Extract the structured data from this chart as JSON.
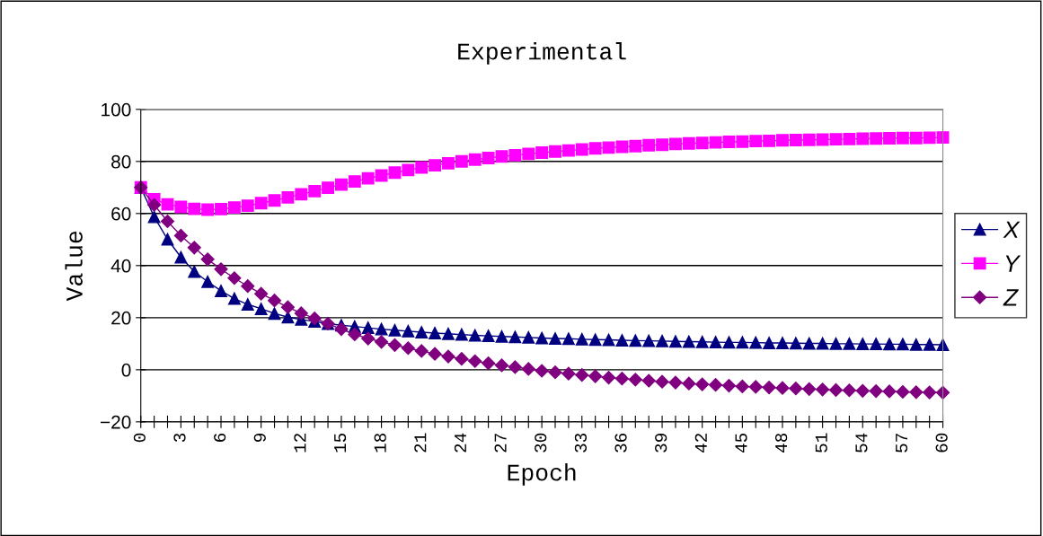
{
  "chart_data": {
    "type": "line",
    "title": "Experimental",
    "xlabel": "Epoch",
    "ylabel": "Value",
    "x": [
      0,
      1,
      2,
      3,
      4,
      5,
      6,
      7,
      8,
      9,
      10,
      11,
      12,
      13,
      14,
      15,
      16,
      17,
      18,
      19,
      20,
      21,
      22,
      23,
      24,
      25,
      26,
      27,
      28,
      29,
      30,
      31,
      32,
      33,
      34,
      35,
      36,
      37,
      38,
      39,
      40,
      41,
      42,
      43,
      44,
      45,
      46,
      47,
      48,
      49,
      50,
      51,
      52,
      53,
      54,
      55,
      56,
      57,
      58,
      59,
      60
    ],
    "series": [
      {
        "name": "X",
        "color": "#000080",
        "marker": "triangle",
        "values": [
          70,
          58.7,
          50.1,
          43.2,
          37.7,
          33.8,
          30.3,
          27.3,
          25.1,
          23.4,
          21.6,
          20.2,
          19.3,
          18.5,
          17.7,
          17.1,
          16.6,
          16.1,
          15.6,
          15.2,
          14.8,
          14.4,
          14.1,
          13.8,
          13.5,
          13.2,
          13.0,
          12.8,
          12.6,
          12.4,
          12.2,
          12.0,
          11.9,
          11.7,
          11.6,
          11.5,
          11.3,
          11.2,
          11.1,
          11.0,
          10.9,
          10.8,
          10.7,
          10.6,
          10.5,
          10.5,
          10.4,
          10.3,
          10.3,
          10.2,
          10.1,
          10.1,
          10.0,
          10.0,
          9.9,
          9.9,
          9.8,
          9.8,
          9.7,
          9.7,
          9.6
        ]
      },
      {
        "name": "Y",
        "color": "#ff00ff",
        "marker": "square",
        "values": [
          70,
          65.5,
          63.5,
          62.5,
          61.8,
          61.5,
          61.7,
          62.3,
          63.0,
          64.0,
          65.0,
          66.2,
          67.4,
          68.6,
          69.9,
          71.1,
          72.3,
          73.5,
          74.6,
          75.7,
          76.7,
          77.7,
          78.5,
          79.3,
          80.0,
          80.7,
          81.3,
          81.9,
          82.4,
          82.9,
          83.4,
          83.8,
          84.2,
          84.6,
          85.0,
          85.3,
          85.6,
          85.9,
          86.2,
          86.4,
          86.7,
          86.9,
          87.1,
          87.3,
          87.5,
          87.6,
          87.8,
          87.9,
          88.1,
          88.2,
          88.3,
          88.4,
          88.5,
          88.6,
          88.7,
          88.8,
          88.9,
          89.0,
          89.0,
          89.1,
          89.2
        ]
      },
      {
        "name": "Z",
        "color": "#800080",
        "marker": "diamond",
        "values": [
          70,
          63.3,
          57.0,
          51.5,
          46.9,
          42.4,
          38.6,
          35.2,
          32.1,
          29.2,
          26.6,
          24.0,
          21.7,
          19.7,
          17.7,
          15.6,
          13.6,
          12.0,
          10.7,
          9.5,
          8.3,
          7.2,
          6.1,
          5.1,
          4.2,
          3.3,
          2.5,
          1.7,
          1.0,
          0.3,
          -0.4,
          -1.0,
          -1.5,
          -2.0,
          -2.5,
          -3.0,
          -3.4,
          -3.8,
          -4.2,
          -4.6,
          -4.9,
          -5.3,
          -5.6,
          -5.8,
          -6.1,
          -6.4,
          -6.6,
          -6.8,
          -7.0,
          -7.2,
          -7.4,
          -7.6,
          -7.8,
          -7.9,
          -8.1,
          -8.2,
          -8.3,
          -8.5,
          -8.6,
          -8.7,
          -8.8
        ]
      }
    ],
    "xlim": [
      0,
      60
    ],
    "xticks": [
      0,
      {
        "value": 1,
        "label": null
      },
      {
        "value": 2,
        "label": null
      },
      3,
      {
        "value": 4,
        "label": null
      },
      {
        "value": 5,
        "label": null
      },
      6,
      {
        "value": 7,
        "label": null
      },
      {
        "value": 8,
        "label": null
      },
      9,
      {
        "value": 10,
        "label": null
      },
      {
        "value": 11,
        "label": null
      },
      12,
      {
        "value": 13,
        "label": null
      },
      {
        "value": 14,
        "label": null
      },
      15,
      {
        "value": 16,
        "label": null
      },
      {
        "value": 17,
        "label": null
      },
      18,
      {
        "value": 19,
        "label": null
      },
      {
        "value": 20,
        "label": null
      },
      21,
      {
        "value": 22,
        "label": null
      },
      {
        "value": 23,
        "label": null
      },
      24,
      {
        "value": 25,
        "label": null
      },
      {
        "value": 26,
        "label": null
      },
      27,
      {
        "value": 28,
        "label": null
      },
      {
        "value": 29,
        "label": null
      },
      30,
      {
        "value": 31,
        "label": null
      },
      {
        "value": 32,
        "label": null
      },
      33,
      {
        "value": 34,
        "label": null
      },
      {
        "value": 35,
        "label": null
      },
      36,
      {
        "value": 37,
        "label": null
      },
      {
        "value": 38,
        "label": null
      },
      39,
      {
        "value": 40,
        "label": null
      },
      {
        "value": 41,
        "label": null
      },
      42,
      {
        "value": 43,
        "label": null
      },
      {
        "value": 44,
        "label": null
      },
      45,
      {
        "value": 46,
        "label": null
      },
      {
        "value": 47,
        "label": null
      },
      48,
      {
        "value": 49,
        "label": null
      },
      {
        "value": 50,
        "label": null
      },
      51,
      {
        "value": 52,
        "label": null
      },
      {
        "value": 53,
        "label": null
      },
      54,
      {
        "value": 55,
        "label": null
      },
      {
        "value": 56,
        "label": null
      },
      57,
      {
        "value": 58,
        "label": null
      },
      {
        "value": 59,
        "label": null
      },
      60
    ],
    "ylim": [
      -20,
      100
    ],
    "yticks": [
      -20,
      0,
      20,
      40,
      60,
      80,
      100
    ],
    "grid": "y",
    "legend": "right",
    "line_style": "solid"
  }
}
